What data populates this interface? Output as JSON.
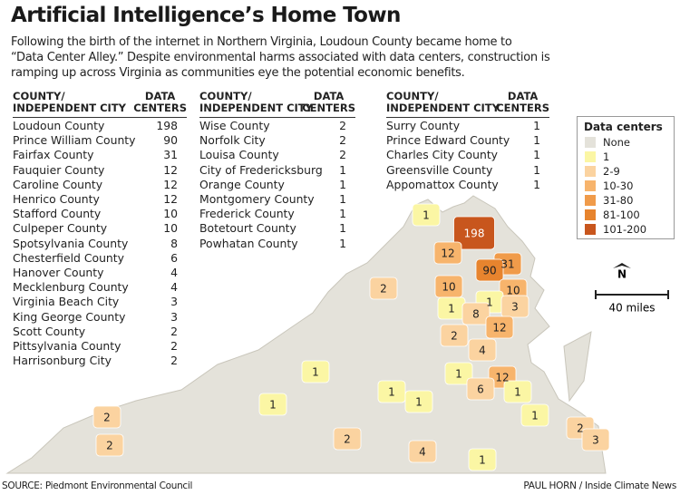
{
  "title": "Artificial Intelligence’s Home Town",
  "subtitle": "Following the birth of the internet in Northern Virginia, Loudoun County became home to\n“Data Center Alley.” Despite environmental harms associated with data centers, construction is\nramping up across Virginia as communities eye the potential economic benefits.",
  "tables": [
    {
      "headers": [
        "COUNTY/\nINDEPENDENT CITY",
        "DATA\nCENTERS"
      ],
      "rows": [
        [
          "Loudoun County",
          198
        ],
        [
          "Prince William County",
          90
        ],
        [
          "Fairfax County",
          31
        ],
        [
          "Fauquier County",
          12
        ],
        [
          "Caroline County",
          12
        ],
        [
          "Henrico County",
          12
        ],
        [
          "Stafford County",
          10
        ],
        [
          "Culpeper County",
          10
        ],
        [
          "Spotsylvania County",
          8
        ],
        [
          "Chesterfield County",
          6
        ],
        [
          "Hanover County",
          4
        ],
        [
          "Mecklenburg County",
          4
        ],
        [
          "Virginia Beach City",
          3
        ],
        [
          "King George County",
          3
        ],
        [
          "Scott County",
          2
        ],
        [
          "Pittsylvania County",
          2
        ],
        [
          "Harrisonburg City",
          2
        ]
      ]
    },
    {
      "headers": [
        "COUNTY/\nINDEPENDENT CITY",
        "DATA\nCENTERS"
      ],
      "rows": [
        [
          "Wise County",
          2
        ],
        [
          "Norfolk City",
          2
        ],
        [
          "Louisa County",
          2
        ],
        [
          "City of Fredericksburg",
          1
        ],
        [
          "Orange County",
          1
        ],
        [
          "Montgomery County",
          1
        ],
        [
          "Frederick County",
          1
        ],
        [
          "Botetourt County",
          1
        ],
        [
          "Powhatan County",
          1
        ]
      ]
    },
    {
      "headers": [
        "COUNTY/\nINDEPENDENT CITY",
        "DATA\nCENTERS"
      ],
      "rows": [
        [
          "Surry County",
          1
        ],
        [
          "Prince Edward County",
          1
        ],
        [
          "Charles City County",
          1
        ],
        [
          "Greensville County",
          1
        ],
        [
          "Appomattox County",
          1
        ]
      ]
    }
  ],
  "legend": {
    "title": "Data centers",
    "items": [
      {
        "label": "None",
        "color": "#e4e2da"
      },
      {
        "label": "1",
        "color": "#fbf6a4"
      },
      {
        "label": "2-9",
        "color": "#fbd3a0"
      },
      {
        "label": "10-30",
        "color": "#f7b46c"
      },
      {
        "label": "31-80",
        "color": "#f09b4a"
      },
      {
        "label": "81-100",
        "color": "#e7842e"
      },
      {
        "label": "101-200",
        "color": "#c8561d"
      }
    ]
  },
  "map": {
    "regions": [
      {
        "value": 1,
        "color": "#fbf6a4"
      },
      {
        "value": 198,
        "color": "#c8561d"
      },
      {
        "value": 12,
        "color": "#f7b46c"
      },
      {
        "value": 31,
        "color": "#f09b4a"
      },
      {
        "value": 90,
        "color": "#e7842e"
      },
      {
        "value": 2,
        "color": "#fbd3a0"
      },
      {
        "value": 10,
        "color": "#f7b46c"
      },
      {
        "value": 10,
        "color": "#f7b46c"
      },
      {
        "value": 1,
        "color": "#fbf6a4"
      },
      {
        "value": 3,
        "color": "#fbd3a0"
      },
      {
        "value": 1,
        "color": "#fbf6a4"
      },
      {
        "value": 8,
        "color": "#fbd3a0"
      },
      {
        "value": 12,
        "color": "#f7b46c"
      },
      {
        "value": 2,
        "color": "#fbd3a0"
      },
      {
        "value": 4,
        "color": "#fbd3a0"
      },
      {
        "value": 1,
        "color": "#fbf6a4"
      },
      {
        "value": 1,
        "color": "#fbf6a4"
      },
      {
        "value": 12,
        "color": "#f7b46c"
      },
      {
        "value": 6,
        "color": "#fbd3a0"
      },
      {
        "value": 1,
        "color": "#fbf6a4"
      },
      {
        "value": 1,
        "color": "#fbf6a4"
      },
      {
        "value": 1,
        "color": "#fbf6a4"
      },
      {
        "value": 1,
        "color": "#fbf6a4"
      },
      {
        "value": 1,
        "color": "#fbf6a4"
      },
      {
        "value": 2,
        "color": "#fbd3a0"
      },
      {
        "value": 2,
        "color": "#fbd3a0"
      },
      {
        "value": 2,
        "color": "#fbd3a0"
      },
      {
        "value": 4,
        "color": "#fbd3a0"
      },
      {
        "value": 2,
        "color": "#fbd3a0"
      },
      {
        "value": 3,
        "color": "#fbd3a0"
      },
      {
        "value": 1,
        "color": "#fbf6a4"
      }
    ],
    "scale_label": "40 miles",
    "north": "N"
  },
  "source": "SOURCE: Piedmont Environmental Council",
  "credit": "PAUL HORN / Inside Climate News"
}
